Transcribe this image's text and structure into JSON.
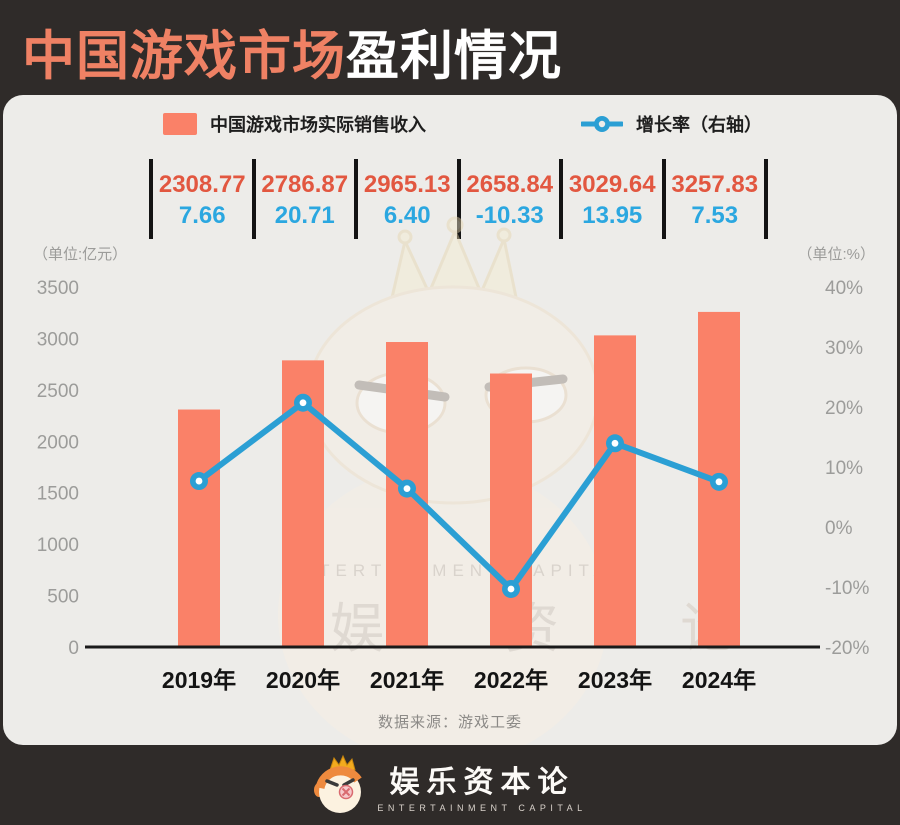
{
  "header": {
    "title_highlight": "中国游戏市场",
    "title_rest": "盈利情况"
  },
  "legend": {
    "bar_label": "中国游戏市场实际销售收入",
    "line_label": "增长率（右轴）"
  },
  "units": {
    "left": "（单位:亿元）",
    "right": "（单位:%）"
  },
  "source": "数据来源：游戏工委",
  "watermark": {
    "text_en": "ENTERTAINMENT CAPITAL",
    "text_cn": "娱   资   论"
  },
  "footer": {
    "brand": "娱乐资本论",
    "brand_sub": "ENTERTAINMENT CAPITAL"
  },
  "colors": {
    "bar": "#FA8168",
    "line": "#2B9FD4",
    "value_red": "#E25740",
    "value_blue": "#2BA7E0",
    "background_dark": "#2F2B29",
    "card_background": "#EDECE9"
  },
  "chart_data": {
    "type": "bar+line combo",
    "categories": [
      "2019年",
      "2020年",
      "2021年",
      "2022年",
      "2023年",
      "2024年"
    ],
    "series": [
      {
        "name": "中国游戏市场实际销售收入",
        "type": "bar",
        "axis": "left",
        "values": [
          2308.77,
          2786.87,
          2965.13,
          2658.84,
          3029.64,
          3257.83
        ]
      },
      {
        "name": "增长率（右轴）",
        "type": "line",
        "axis": "right",
        "values": [
          7.66,
          20.71,
          6.4,
          -10.33,
          13.95,
          7.53
        ]
      }
    ],
    "left_axis": {
      "unit": "（单位:亿元）",
      "min": 0,
      "max": 3500,
      "ticks": [
        "3500",
        "3000",
        "2500",
        "2000",
        "1500",
        "1000",
        "500",
        "0"
      ]
    },
    "right_axis": {
      "unit": "（单位:%）",
      "min": -20,
      "max": 40,
      "ticks": [
        "40%",
        "30%",
        "20%",
        "10%",
        "0%",
        "-10%",
        "-20%"
      ]
    },
    "grid": false,
    "legend_position": "top"
  }
}
